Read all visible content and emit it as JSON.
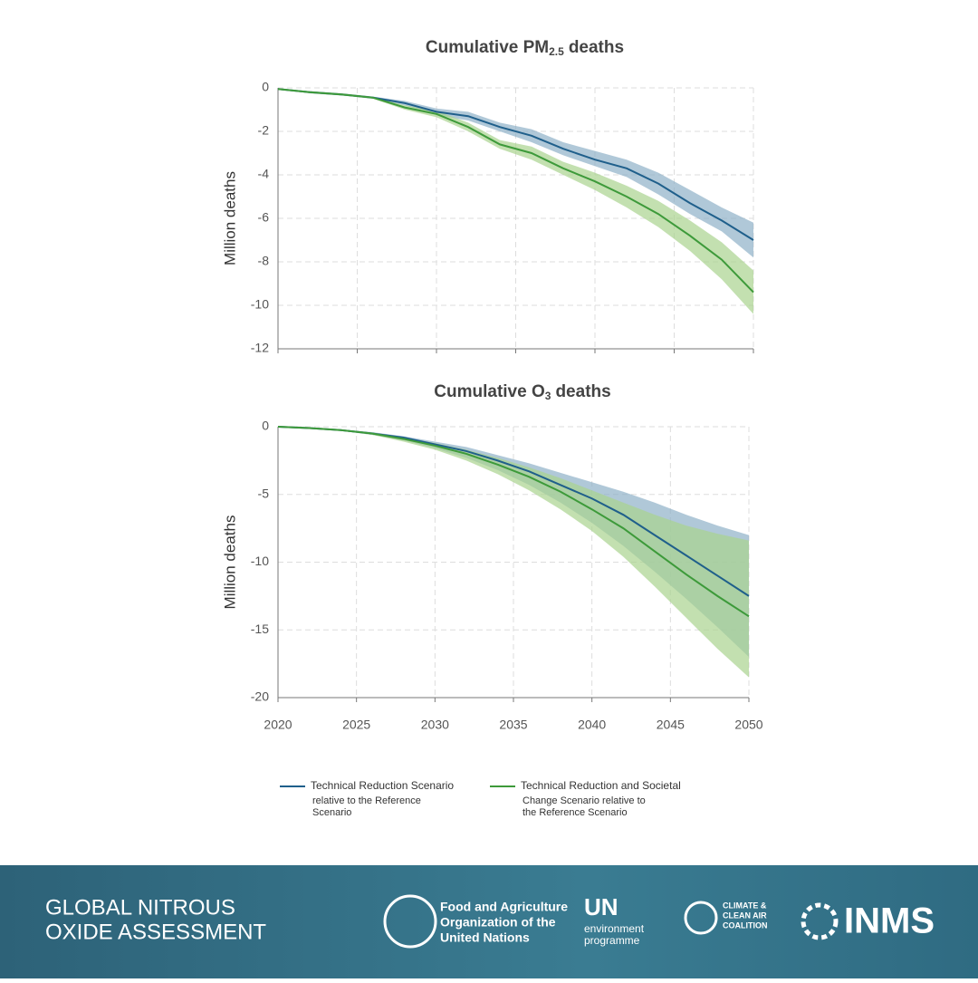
{
  "chart_data": [
    {
      "type": "line",
      "title": "Cumulative PM",
      "title_subscript": "2.5",
      "title_suffix": "deaths",
      "ylabel": "Million deaths",
      "x": [
        2020,
        2022,
        2024,
        2026,
        2028,
        2030,
        2032,
        2034,
        2036,
        2038,
        2040,
        2042,
        2044,
        2046,
        2048,
        2050
      ],
      "xlim": [
        2020,
        2050
      ],
      "xticks": [
        2020,
        2025,
        2030,
        2035,
        2040,
        2045,
        2050
      ],
      "ylim": [
        -12,
        0
      ],
      "yticks": [
        0,
        -2,
        -4,
        -6,
        -8,
        -10,
        -12
      ],
      "grid": true,
      "series": [
        {
          "name": "Technical Reduction Scenario",
          "color": "#1f5f8b",
          "band_color": "#8fb0c8",
          "values": [
            -0.05,
            -0.2,
            -0.3,
            -0.45,
            -0.7,
            -1.1,
            -1.3,
            -1.8,
            -2.2,
            -2.8,
            -3.3,
            -3.7,
            -4.4,
            -5.3,
            -6.1,
            -7.0
          ],
          "upper": [
            -0.05,
            -0.15,
            -0.25,
            -0.4,
            -0.6,
            -0.95,
            -1.1,
            -1.6,
            -1.9,
            -2.5,
            -2.9,
            -3.3,
            -3.9,
            -4.7,
            -5.5,
            -6.2
          ],
          "lower": [
            -0.05,
            -0.25,
            -0.35,
            -0.5,
            -0.8,
            -1.25,
            -1.5,
            -2.0,
            -2.5,
            -3.1,
            -3.6,
            -4.1,
            -4.9,
            -5.8,
            -6.6,
            -7.8
          ]
        },
        {
          "name": "Technical Reduction and Societal Change Scenario",
          "color": "#3d9a3a",
          "band_color": "#a9d38f",
          "values": [
            -0.05,
            -0.2,
            -0.3,
            -0.45,
            -0.9,
            -1.2,
            -1.8,
            -2.6,
            -3.0,
            -3.7,
            -4.3,
            -5.0,
            -5.8,
            -6.8,
            -7.9,
            -9.4
          ],
          "upper": [
            -0.05,
            -0.15,
            -0.25,
            -0.4,
            -0.8,
            -1.05,
            -1.6,
            -2.4,
            -2.7,
            -3.4,
            -3.9,
            -4.5,
            -5.2,
            -6.1,
            -7.1,
            -8.4
          ],
          "lower": [
            -0.05,
            -0.25,
            -0.35,
            -0.5,
            -1.0,
            -1.35,
            -2.0,
            -2.8,
            -3.3,
            -4.0,
            -4.7,
            -5.5,
            -6.4,
            -7.5,
            -8.8,
            -10.4
          ]
        }
      ]
    },
    {
      "type": "line",
      "title": "Cumulative O",
      "title_subscript": "3",
      "title_suffix": "deaths",
      "ylabel": "Million deaths",
      "x": [
        2020,
        2022,
        2024,
        2026,
        2028,
        2030,
        2032,
        2034,
        2036,
        2038,
        2040,
        2042,
        2044,
        2046,
        2048,
        2050
      ],
      "xlim": [
        2020,
        2050
      ],
      "xticks": [
        2020,
        2025,
        2030,
        2035,
        2040,
        2045,
        2050
      ],
      "ylim": [
        -20,
        0
      ],
      "yticks": [
        0,
        -5,
        -10,
        -15,
        -20
      ],
      "grid": true,
      "xtick_labels": true,
      "series": [
        {
          "name": "Technical Reduction Scenario",
          "color": "#1f5f8b",
          "band_color": "#8fb0c8",
          "values": [
            0,
            -0.1,
            -0.25,
            -0.5,
            -0.8,
            -1.3,
            -1.8,
            -2.5,
            -3.3,
            -4.3,
            -5.3,
            -6.5,
            -8.0,
            -9.5,
            -11.0,
            -12.5
          ],
          "upper": [
            0,
            -0.05,
            -0.2,
            -0.4,
            -0.7,
            -1.1,
            -1.5,
            -2.1,
            -2.7,
            -3.4,
            -4.1,
            -4.8,
            -5.6,
            -6.5,
            -7.3,
            -8.0
          ],
          "lower": [
            0,
            -0.15,
            -0.3,
            -0.6,
            -1.0,
            -1.6,
            -2.3,
            -3.2,
            -4.3,
            -5.6,
            -7.1,
            -8.8,
            -10.7,
            -12.7,
            -14.8,
            -17.0
          ]
        },
        {
          "name": "Technical Reduction and Societal Change Scenario",
          "color": "#3d9a3a",
          "band_color": "#a9d38f",
          "values": [
            0,
            -0.1,
            -0.25,
            -0.5,
            -0.9,
            -1.4,
            -2.0,
            -2.8,
            -3.7,
            -4.8,
            -6.1,
            -7.5,
            -9.2,
            -10.9,
            -12.5,
            -14.0
          ],
          "upper": [
            0,
            -0.05,
            -0.2,
            -0.45,
            -0.8,
            -1.2,
            -1.7,
            -2.3,
            -3.0,
            -3.8,
            -4.7,
            -5.6,
            -6.5,
            -7.3,
            -7.9,
            -8.4
          ],
          "lower": [
            0,
            -0.15,
            -0.3,
            -0.6,
            -1.1,
            -1.7,
            -2.5,
            -3.5,
            -4.7,
            -6.1,
            -7.7,
            -9.6,
            -11.8,
            -14.1,
            -16.4,
            -18.5
          ]
        }
      ]
    }
  ],
  "legend": {
    "items": [
      {
        "line1": "Technical Reduction Scenario",
        "line2": "relative to the Reference",
        "line3": "Scenario"
      },
      {
        "line1": "Technical Reduction and Societal",
        "line2": "Change Scenario relative to",
        "line3": "the Reference Scenario"
      }
    ]
  },
  "footer": {
    "title_line1": "GLOBAL NITROUS",
    "title_line2": "OXIDE ASSESSMENT",
    "fao_line1": "Food and Agriculture",
    "fao_line2": "Organization of the",
    "fao_line3": "United Nations",
    "unep_line1": "UN",
    "unep_line2": "environment",
    "unep_line3": "programme",
    "ccac_line1": "CLIMATE &",
    "ccac_line2": "CLEAN AIR",
    "ccac_line3": "COALITION",
    "inms": "INMS"
  }
}
